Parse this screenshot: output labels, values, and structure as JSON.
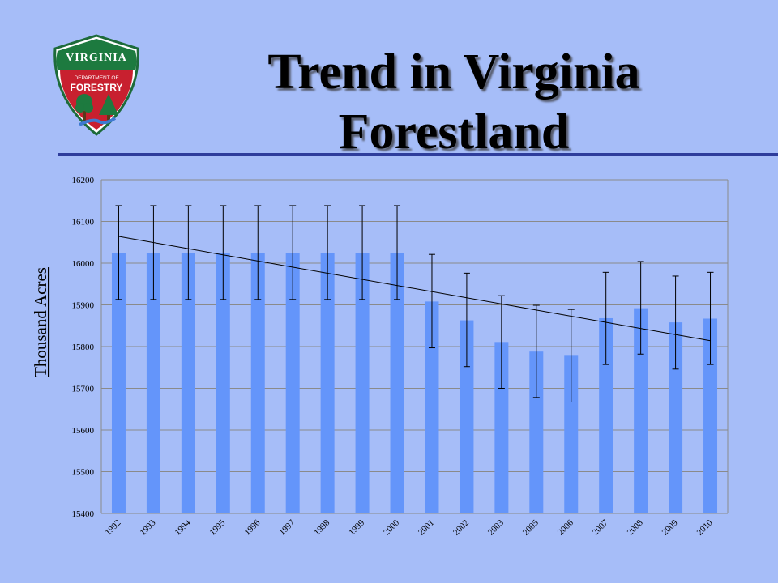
{
  "logo": {
    "text_top": "VIRGINIA",
    "text_middle": "DEPARTMENT OF",
    "text_main": "FORESTRY"
  },
  "slide": {
    "title_line1": "Trend in Virginia",
    "title_line2": "Forestland"
  },
  "colors": {
    "background": "#a6bdf8",
    "bar": "#6495fa",
    "rule": "#2e3d9c"
  },
  "chart_data": {
    "type": "bar",
    "title": "",
    "xlabel": "",
    "ylabel": "Thousand Acres",
    "ylim": [
      15400,
      16200
    ],
    "yticks": [
      15400,
      15500,
      15600,
      15700,
      15800,
      15900,
      16000,
      16100,
      16200
    ],
    "grid": true,
    "categories": [
      "1992",
      "1993",
      "1994",
      "1995",
      "1996",
      "1997",
      "1998",
      "1999",
      "2000",
      "2001",
      "2002",
      "2003",
      "2005",
      "2006",
      "2007",
      "2008",
      "2009",
      "2010"
    ],
    "values": [
      16025,
      16025,
      16025,
      16025,
      16025,
      16025,
      16025,
      16025,
      16025,
      15908,
      15863,
      15811,
      15788,
      15778,
      15868,
      15892,
      15858,
      15867
    ],
    "error_bars": {
      "upper": [
        16138,
        16138,
        16138,
        16138,
        16138,
        16138,
        16138,
        16138,
        16138,
        16021,
        15976,
        15922,
        15899,
        15889,
        15978,
        16004,
        15969,
        15978
      ],
      "lower": [
        15913,
        15913,
        15913,
        15913,
        15913,
        15913,
        15913,
        15913,
        15913,
        15797,
        15752,
        15700,
        15678,
        15667,
        15757,
        15782,
        15746,
        15757
      ]
    },
    "trendline": {
      "type": "linear",
      "start": 16064,
      "end": 15814
    }
  }
}
